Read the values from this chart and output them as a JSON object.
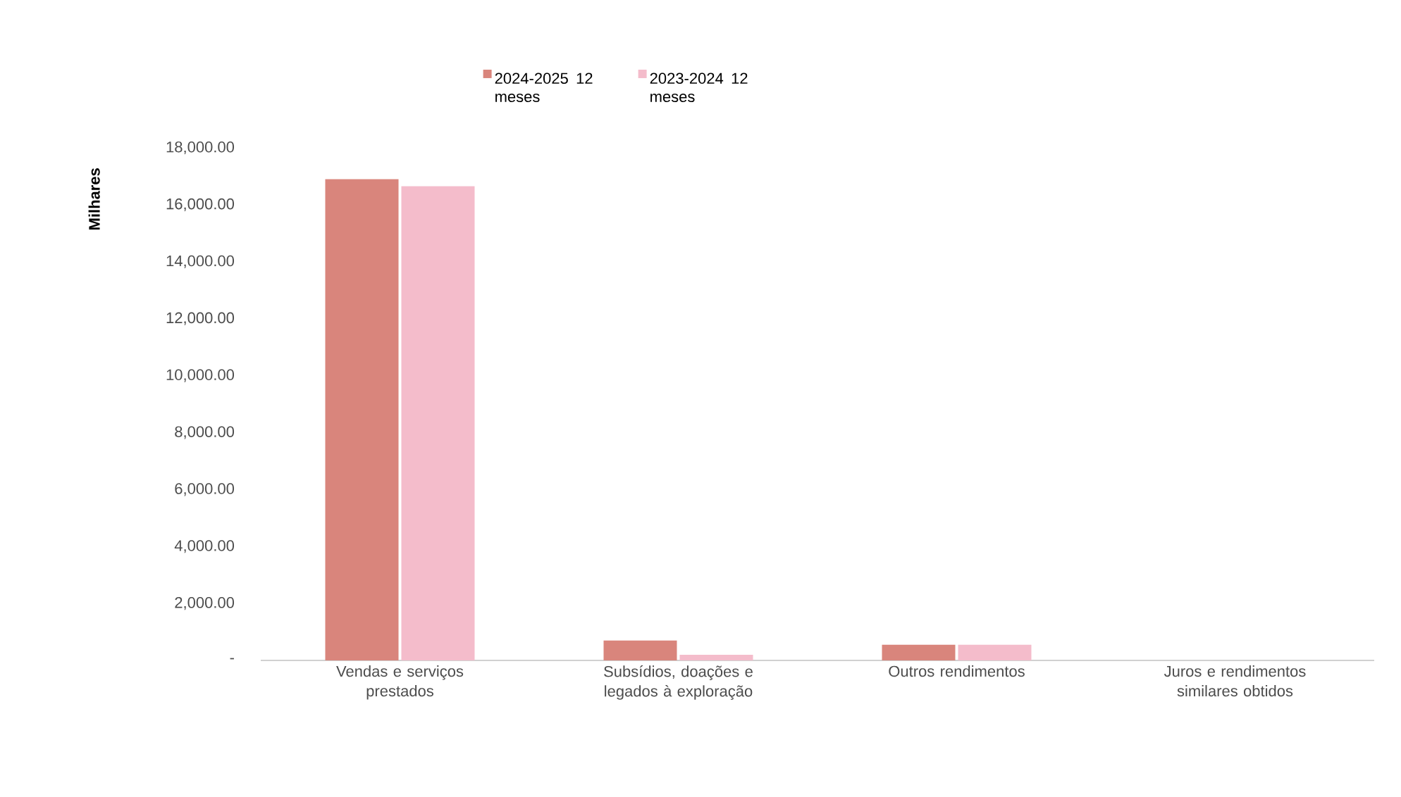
{
  "chart_data": {
    "type": "bar",
    "ylabel": "Milhares",
    "categories": [
      "Vendas e serviços prestados",
      "Subsídios, doações e legados à exploração",
      "Outros rendimentos",
      "Juros e rendimentos similares obtidos"
    ],
    "series": [
      {
        "name": "2024-2025 12 meses",
        "color": "#d9857c",
        "values": [
          16900,
          700,
          550,
          null
        ]
      },
      {
        "name": "2023-2024 12 meses",
        "color": "#f4bccb",
        "values": [
          16650,
          200,
          550,
          null
        ]
      }
    ],
    "ylim": [
      0,
      18000
    ],
    "yticks": [
      {
        "value": 0,
        "label": "-"
      },
      {
        "value": 2000,
        "label": "2,000.00"
      },
      {
        "value": 4000,
        "label": "4,000.00"
      },
      {
        "value": 6000,
        "label": "6,000.00"
      },
      {
        "value": 8000,
        "label": "8,000.00"
      },
      {
        "value": 10000,
        "label": "10,000.00"
      },
      {
        "value": 12000,
        "label": "12,000.00"
      },
      {
        "value": 14000,
        "label": "14,000.00"
      },
      {
        "value": 16000,
        "label": "16,000.00"
      },
      {
        "value": 18000,
        "label": "18,000.00"
      }
    ],
    "legend": "top",
    "grid": false
  }
}
